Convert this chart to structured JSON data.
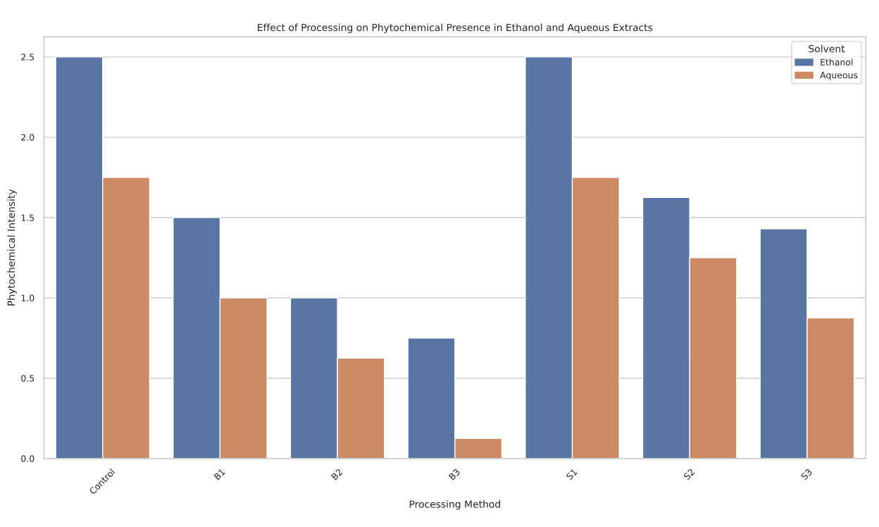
{
  "chart_data": {
    "type": "bar",
    "title": "Effect of Processing on Phytochemical Presence in Ethanol and Aqueous Extracts",
    "xlabel": "Processing Method",
    "ylabel": "Phytochemical Intensity",
    "legend_title": "Solvent",
    "categories": [
      "Control",
      "B1",
      "B2",
      "B3",
      "S1",
      "S2",
      "S3"
    ],
    "series": [
      {
        "name": "Ethanol",
        "color": "#5975a4",
        "values": [
          2.5,
          1.5,
          1.0,
          0.75,
          2.5,
          1.625,
          1.43
        ]
      },
      {
        "name": "Aqueous",
        "color": "#cc8963",
        "values": [
          1.75,
          1.0,
          0.625,
          0.125,
          1.75,
          1.25,
          0.875
        ]
      }
    ],
    "ylim": [
      0,
      2.625
    ],
    "yticks": [
      {
        "value": 0,
        "label": "0.0"
      },
      {
        "value": 0.5,
        "label": "0.5"
      },
      {
        "value": 1,
        "label": "1.0"
      },
      {
        "value": 1.5,
        "label": "1.5"
      },
      {
        "value": 2,
        "label": "2.0"
      },
      {
        "value": 2.5,
        "label": "2.5"
      }
    ],
    "grid": "y",
    "legend": "top right"
  }
}
